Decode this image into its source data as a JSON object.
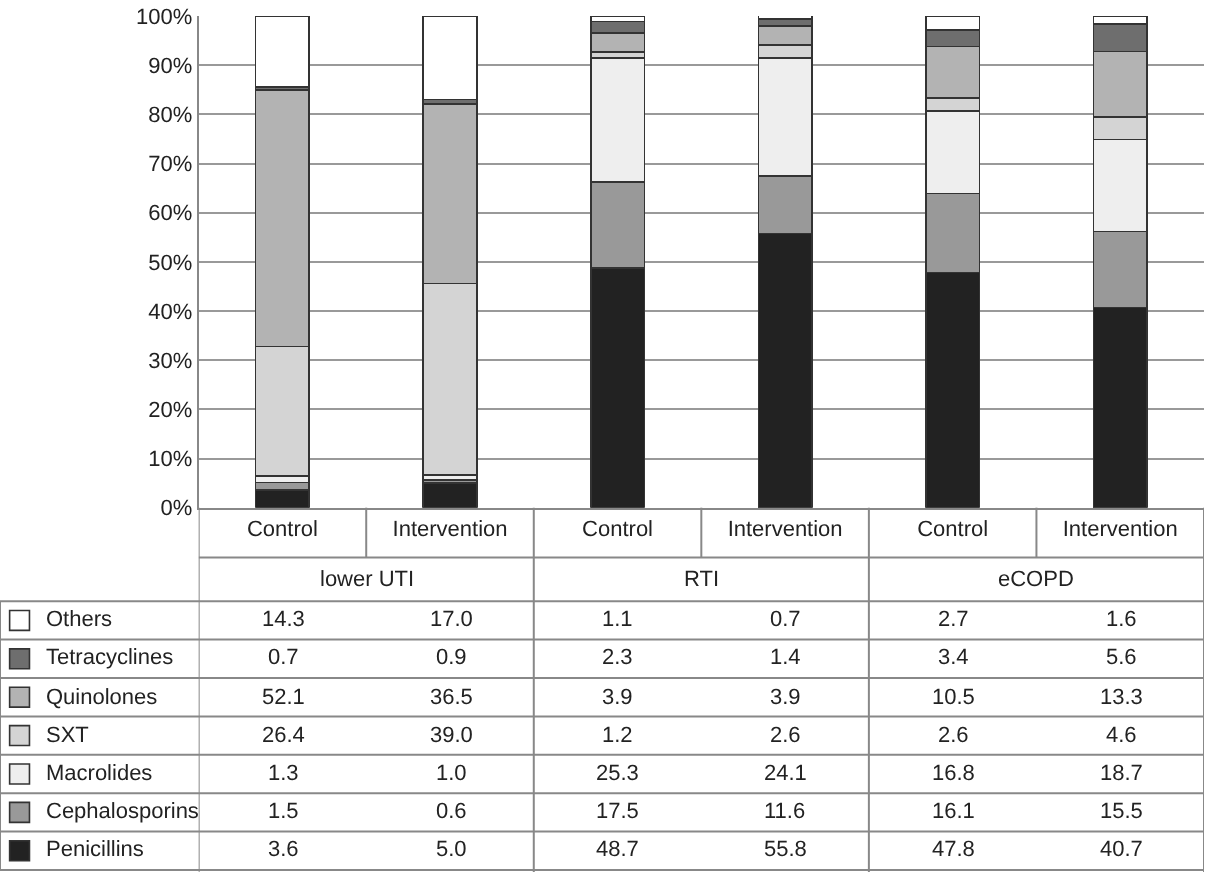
{
  "chart_data": {
    "type": "bar",
    "stacked": true,
    "grid": "y",
    "legend": "bottom left",
    "categories": [
      "Control",
      "Intervention",
      "Control",
      "Intervention",
      "Control",
      "Intervention"
    ],
    "annotations": [
      "lower UTI",
      "RTI",
      "eCOPD"
    ],
    "ylim": [
      0,
      100
    ],
    "yticks": [
      {
        "value": 0,
        "label": "0%"
      },
      {
        "value": 10,
        "label": "10%"
      },
      {
        "value": 20,
        "label": "20%"
      },
      {
        "value": 30,
        "label": "30%"
      },
      {
        "value": 40,
        "label": "40%"
      },
      {
        "value": 50,
        "label": "50%"
      },
      {
        "value": 60,
        "label": "60%"
      },
      {
        "value": 70,
        "label": "70%"
      },
      {
        "value": 80,
        "label": "80%"
      },
      {
        "value": 90,
        "label": "90%"
      },
      {
        "value": 100,
        "label": "100%"
      }
    ],
    "series": [
      {
        "name": "Penicillins",
        "color": "#222222",
        "values": [
          3.6,
          5.0,
          48.7,
          55.8,
          47.8,
          40.7
        ],
        "value_labels": [
          "3.6",
          "5.0",
          "48.7",
          "55.8",
          "47.8",
          "40.7"
        ]
      },
      {
        "name": "Cephalosporins",
        "color": "#999999",
        "values": [
          1.5,
          0.6,
          17.5,
          11.6,
          16.1,
          15.5
        ],
        "value_labels": [
          "1.5",
          "0.6",
          "17.5",
          "11.6",
          "16.1",
          "15.5"
        ]
      },
      {
        "name": "Macrolides",
        "color": "#eeeeee",
        "values": [
          1.3,
          1.0,
          25.3,
          24.1,
          16.8,
          18.7
        ],
        "value_labels": [
          "1.3",
          "1.0",
          "25.3",
          "24.1",
          "16.8",
          "18.7"
        ]
      },
      {
        "name": "SXT",
        "color": "#d4d4d4",
        "values": [
          26.4,
          39.0,
          1.2,
          2.6,
          2.6,
          4.6
        ],
        "value_labels": [
          "26.4",
          "39.0",
          "1.2",
          "2.6",
          "2.6",
          "4.6"
        ]
      },
      {
        "name": "Quinolones",
        "color": "#b3b3b3",
        "values": [
          52.1,
          36.5,
          3.9,
          3.9,
          10.5,
          13.3
        ],
        "value_labels": [
          "52.1",
          "36.5",
          "3.9",
          "3.9",
          "10.5",
          "13.3"
        ]
      },
      {
        "name": "Tetracyclines",
        "color": "#6e6e6e",
        "values": [
          0.7,
          0.9,
          2.3,
          1.4,
          3.4,
          5.6
        ],
        "value_labels": [
          "0.7",
          "0.9",
          "2.3",
          "1.4",
          "3.4",
          "5.6"
        ]
      },
      {
        "name": "Others",
        "color": "#ffffff",
        "values": [
          14.3,
          17.0,
          1.1,
          0.7,
          2.7,
          1.6
        ],
        "value_labels": [
          "14.3",
          "17.0",
          "1.1",
          "0.7",
          "2.7",
          "1.6"
        ]
      }
    ]
  }
}
